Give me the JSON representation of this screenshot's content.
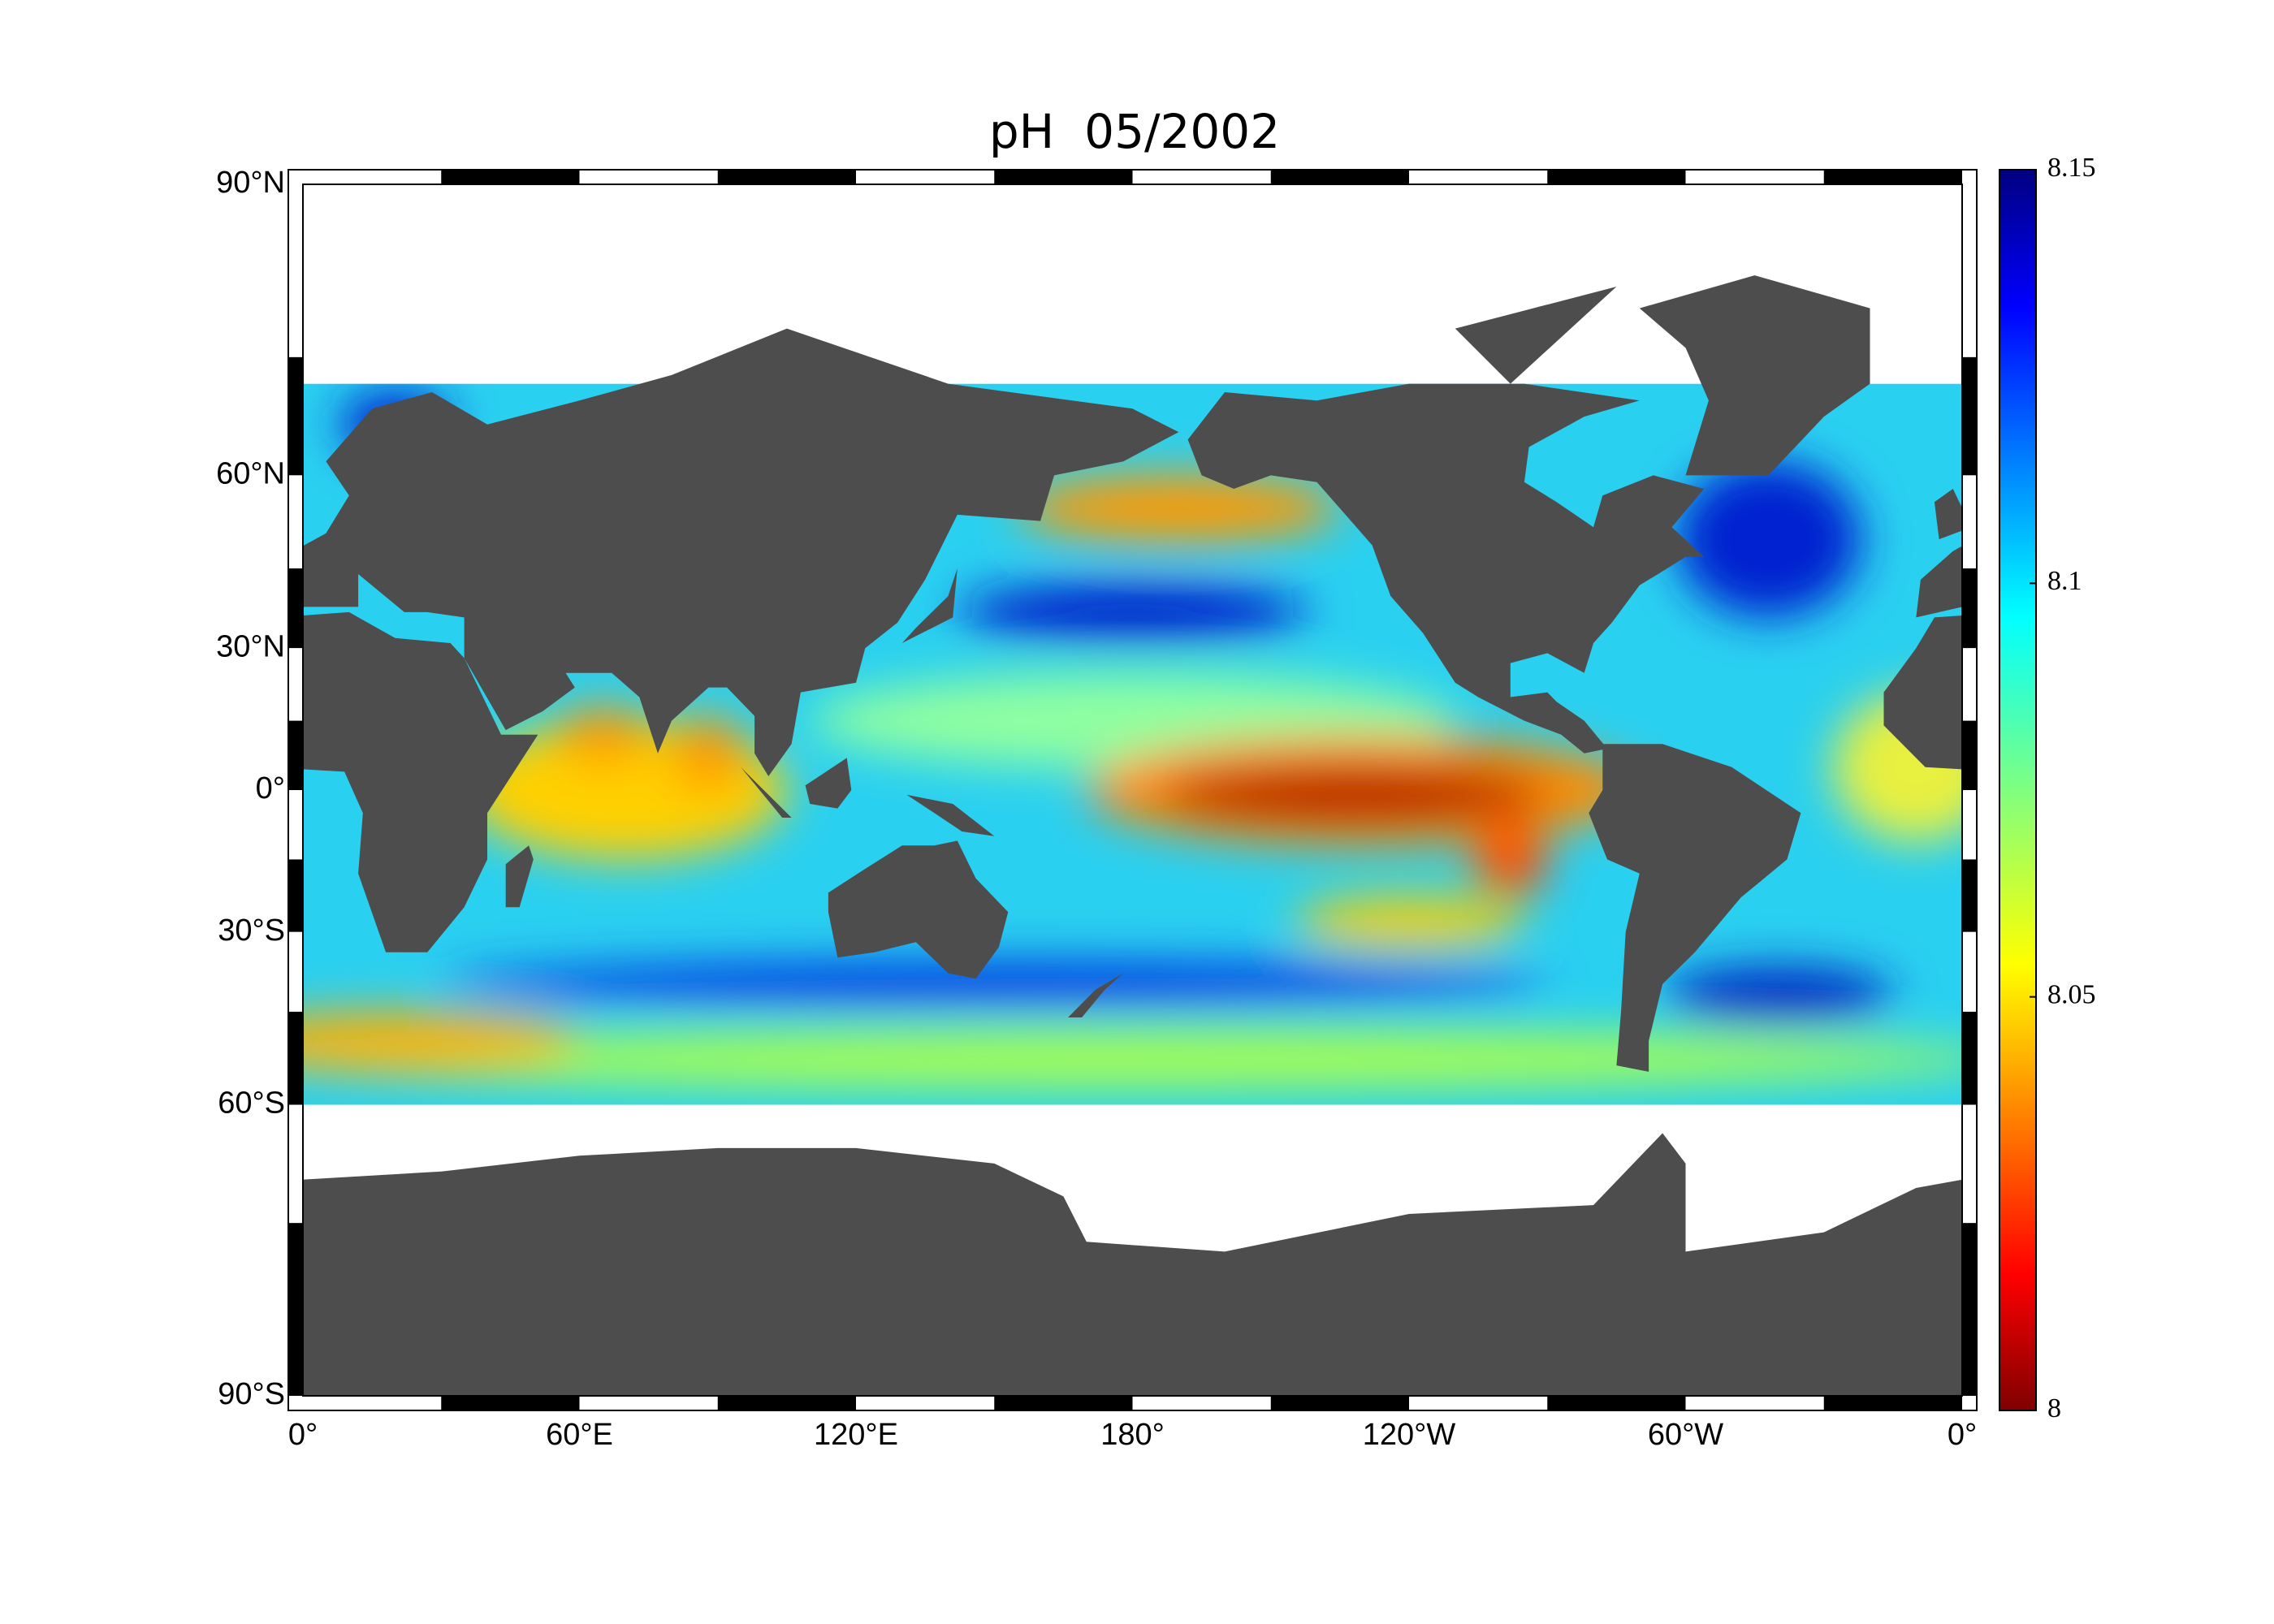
{
  "title": "pH  05/2002",
  "map": {
    "projection": "miller",
    "lonlim": [
      0,
      360
    ],
    "latlim": [
      -90,
      90
    ],
    "lon_ticks": [
      {
        "value": 0,
        "label": "0°"
      },
      {
        "value": 60,
        "label": "60°E"
      },
      {
        "value": 120,
        "label": "120°E"
      },
      {
        "value": 180,
        "label": "180°"
      },
      {
        "value": 240,
        "label": "120°W"
      },
      {
        "value": 300,
        "label": "60°W"
      },
      {
        "value": 360,
        "label": "0°"
      }
    ],
    "lat_ticks": [
      {
        "value": 90,
        "label": "90°N"
      },
      {
        "value": 60,
        "label": "60°N"
      },
      {
        "value": 30,
        "label": "30°N"
      },
      {
        "value": 0,
        "label": "0°"
      },
      {
        "value": -30,
        "label": "30°S"
      },
      {
        "value": -60,
        "label": "60°S"
      },
      {
        "value": -90,
        "label": "90°S"
      }
    ]
  },
  "colorbar": {
    "colormap": "jet",
    "clim": [
      8,
      8.15
    ],
    "ticks": [
      8,
      8.05,
      8.1,
      8.15
    ]
  }
}
